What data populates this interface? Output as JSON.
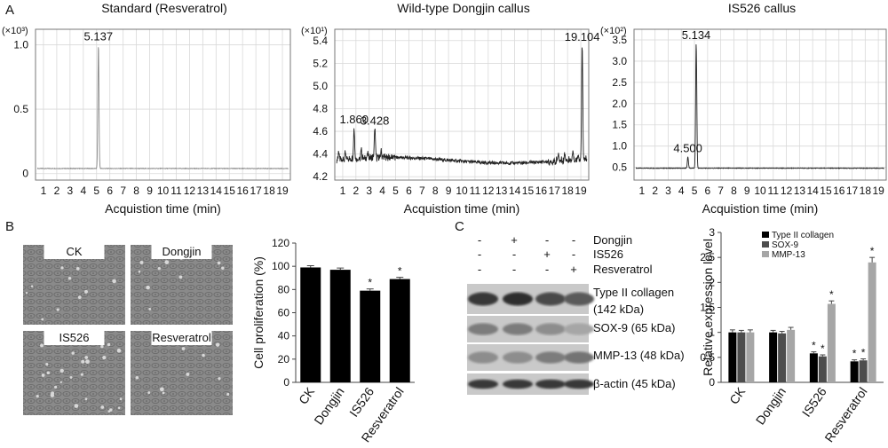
{
  "panel_labels": {
    "a": "A",
    "b": "B",
    "c": "C"
  },
  "chart_data": [
    {
      "type": "line",
      "title": "Standard (Resveratrol)",
      "multiplier": "(×10³)",
      "xlabel": "Acquistion time (min)",
      "xticks": [
        "1",
        "2",
        "3",
        "4",
        "5",
        "6",
        "7",
        "8",
        "9",
        "10",
        "11",
        "12",
        "13",
        "14",
        "15",
        "16",
        "17",
        "18",
        "19"
      ],
      "yticks": [
        "0",
        "0.5",
        "1.0"
      ],
      "ylim": [
        -0.05,
        1.12
      ],
      "xlim": [
        0.4,
        19.6
      ],
      "baseline": 0.04,
      "peaks": [
        {
          "time": 5.137,
          "height": 1.0,
          "label": "5.137"
        }
      ],
      "minor_peaks": []
    },
    {
      "type": "line",
      "title": "Wild-type Dongjin callus",
      "multiplier": "(×10¹)",
      "xlabel": "Acquistion time (min)",
      "xticks": [
        "1",
        "2",
        "3",
        "4",
        "5",
        "6",
        "7",
        "8",
        "9",
        "10",
        "11",
        "12",
        "13",
        "14",
        "15",
        "16",
        "17",
        "18",
        "19"
      ],
      "yticks": [
        "4.2",
        "4.4",
        "4.6",
        "4.8",
        "5.0",
        "5.2",
        "5.4"
      ],
      "ylim": [
        4.17,
        5.5
      ],
      "xlim": [
        0.4,
        19.6
      ],
      "baseline": 4.36,
      "peaks": [
        {
          "time": 1.86,
          "height": 4.63,
          "label": "1.860"
        },
        {
          "time": 3.428,
          "height": 4.62,
          "label": "3.428"
        },
        {
          "time": 19.104,
          "height": 5.36,
          "label": "19.104"
        }
      ],
      "minor_peaks": [
        {
          "time": 0.7,
          "height": 4.42
        },
        {
          "time": 1.2,
          "height": 4.41
        },
        {
          "time": 2.4,
          "height": 4.43
        },
        {
          "time": 2.9,
          "height": 4.41
        },
        {
          "time": 3.9,
          "height": 4.42
        },
        {
          "time": 17.3,
          "height": 4.42
        },
        {
          "time": 17.8,
          "height": 4.43
        },
        {
          "time": 18.4,
          "height": 4.44
        },
        {
          "time": 18.8,
          "height": 4.42
        }
      ]
    },
    {
      "type": "line",
      "title": "IS526 callus",
      "multiplier": "(×10²)",
      "xlabel": "Acquistion time (min)",
      "xticks": [
        "1",
        "2",
        "3",
        "4",
        "5",
        "6",
        "7",
        "8",
        "9",
        "10",
        "11",
        "12",
        "13",
        "14",
        "15",
        "16",
        "17",
        "18",
        "19"
      ],
      "yticks": [
        "0.5",
        "1.0",
        "1.5",
        "2.0",
        "2.5",
        "3.0",
        "3.5"
      ],
      "ylim": [
        0.2,
        3.75
      ],
      "xlim": [
        0.4,
        19.6
      ],
      "baseline": 0.48,
      "peaks": [
        {
          "time": 4.5,
          "height": 0.75,
          "label": "4.500"
        },
        {
          "time": 5.134,
          "height": 3.42,
          "label": "5.134"
        }
      ],
      "minor_peaks": []
    },
    {
      "type": "bar",
      "categories": [
        "CK",
        "Dongjin",
        "IS526",
        "Resveratrol"
      ],
      "values": [
        99,
        97,
        79,
        89
      ],
      "errors": [
        1.5,
        1.5,
        1.5,
        1.5
      ],
      "significant": [
        false,
        false,
        true,
        true
      ],
      "ylabel": "Cell proliferation (%)",
      "yticks": [
        "0",
        "20",
        "40",
        "60",
        "80",
        "100",
        "120"
      ],
      "ylim": [
        0,
        120
      ]
    },
    {
      "type": "bar",
      "categories": [
        "CK",
        "Dongjin",
        "IS526",
        "Resveratrol"
      ],
      "ylabel": "Relative expression level",
      "yticks": [
        "0",
        "0.5",
        "1",
        "1.5",
        "2",
        "2.5",
        "3"
      ],
      "ylim": [
        0,
        3
      ],
      "legend_position": "top-left",
      "series": [
        {
          "name": "Type II collagen",
          "color": "#000000",
          "values": [
            1.0,
            1.0,
            0.58,
            0.42
          ],
          "errors": [
            0.05,
            0.04,
            0.03,
            0.03
          ],
          "significant": [
            false,
            false,
            true,
            true
          ]
        },
        {
          "name": "SOX-9",
          "color": "#4d4d4d",
          "values": [
            1.0,
            0.98,
            0.52,
            0.44
          ],
          "errors": [
            0.04,
            0.04,
            0.03,
            0.03
          ],
          "significant": [
            false,
            false,
            true,
            true
          ]
        },
        {
          "name": "MMP-13",
          "color": "#a6a6a6",
          "values": [
            1.0,
            1.05,
            1.57,
            2.4
          ],
          "errors": [
            0.05,
            0.05,
            0.06,
            0.1
          ],
          "significant": [
            false,
            false,
            true,
            true
          ]
        }
      ]
    }
  ],
  "significance_mark": "*",
  "cell_images": [
    "CK",
    "Dongjin",
    "IS526",
    "Resveratrol"
  ],
  "western_blot": {
    "conditions": [
      {
        "name": "Dongjin",
        "signs": [
          "-",
          "+",
          "-",
          "-"
        ]
      },
      {
        "name": "IS526",
        "signs": [
          "-",
          "-",
          "+",
          "-"
        ]
      },
      {
        "name": "Resveratrol",
        "signs": [
          "-",
          "-",
          "-",
          "+"
        ]
      }
    ],
    "bands": [
      {
        "label": "Type II collagen",
        "label2": "(142 kDa)",
        "intensity": [
          0.85,
          0.9,
          0.75,
          0.65
        ]
      },
      {
        "label": "SOX-9 (65 kDa)",
        "label2": "",
        "intensity": [
          0.45,
          0.45,
          0.35,
          0.2
        ]
      },
      {
        "label": "MMP-13 (48 kDa)",
        "label2": "",
        "intensity": [
          0.35,
          0.35,
          0.45,
          0.5
        ]
      },
      {
        "label": "β-actin (45 kDa)",
        "label2": "",
        "intensity": [
          0.85,
          0.85,
          0.85,
          0.85
        ]
      }
    ]
  }
}
